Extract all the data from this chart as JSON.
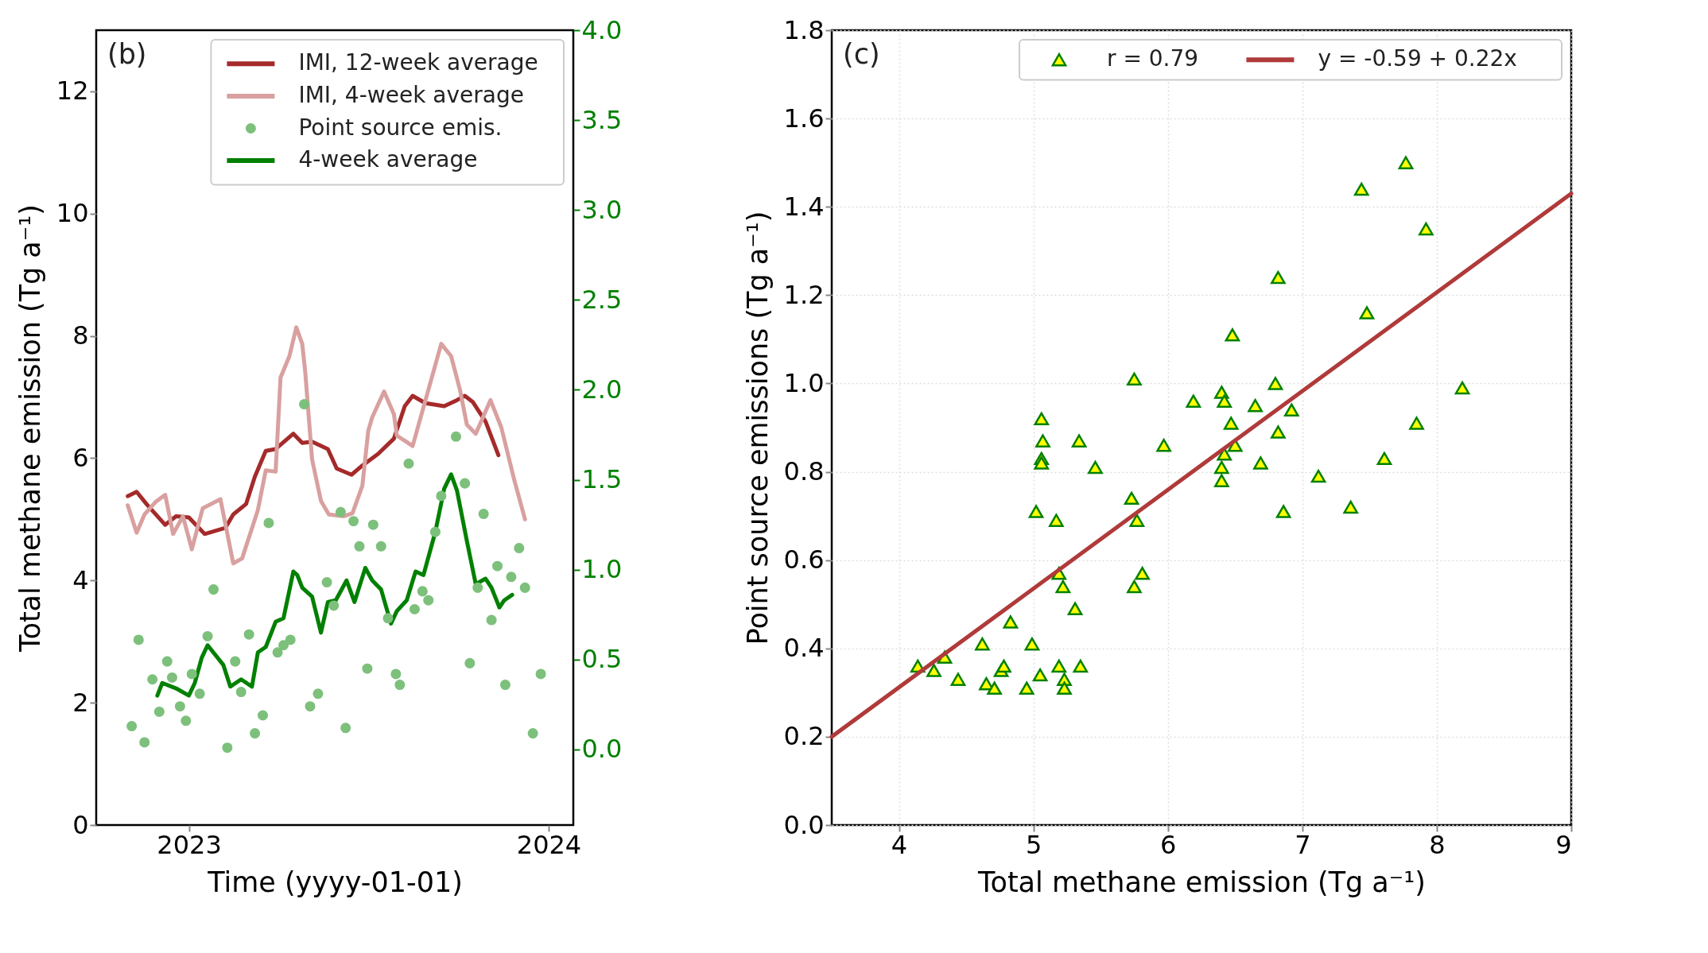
{
  "chart_data": [
    {
      "type": "line",
      "xlabel": "Time (yyyy-01-01)",
      "ylabel": "Total methane emission (Tg a⁻¹)",
      "xlim": [
        "2022-09-29",
        "2024-01-26"
      ],
      "xticks": [
        {
          "value": "2023-01-01",
          "label": "2023"
        },
        {
          "value": "2024-01-01",
          "label": "2024"
        }
      ],
      "ylim": [
        0,
        13
      ],
      "yticks": [
        0,
        2,
        4,
        6,
        8,
        10,
        12
      ],
      "y2lim": [
        -0.42,
        4.0
      ],
      "y2ticks": [
        {
          "value": 0,
          "label": "0.0"
        },
        {
          "value": 0.5,
          "label": "0.5"
        },
        {
          "value": 1,
          "label": "1.0"
        },
        {
          "value": 1.5,
          "label": "1.5"
        },
        {
          "value": 2,
          "label": "2.0"
        },
        {
          "value": 2.5,
          "label": "2.5"
        },
        {
          "value": 3,
          "label": "3.0"
        },
        {
          "value": 3.5,
          "label": "3.5"
        },
        {
          "value": 4,
          "label": "4.0"
        }
      ],
      "grid": false,
      "legend": "top right",
      "annotations": [
        "(b)"
      ],
      "series": [
        {
          "name": "IMI, 12-week average",
          "type": "line",
          "color": "#a52a2a",
          "marker": "none",
          "x": [
            "2022-10-31",
            "2022-11-09",
            "2022-11-19",
            "2022-12-08",
            "2022-12-19",
            "2023-01-01",
            "2023-01-17",
            "2023-02-07",
            "2023-02-15",
            "2023-02-28",
            "2023-03-09",
            "2023-03-20",
            "2023-03-30",
            "2023-04-17",
            "2023-04-26",
            "2023-05-06",
            "2023-05-22",
            "2023-05-31",
            "2023-06-15",
            "2023-06-26",
            "2023-07-12",
            "2023-07-28",
            "2023-08-08",
            "2023-08-16",
            "2023-08-29",
            "2023-09-17",
            "2023-09-30",
            "2023-10-08",
            "2023-10-16",
            "2023-10-29",
            "2023-11-11"
          ],
          "values": [
            5.38,
            5.45,
            5.25,
            4.91,
            5.05,
            5.03,
            4.76,
            4.86,
            5.08,
            5.25,
            5.7,
            6.12,
            6.15,
            6.4,
            6.25,
            6.27,
            6.15,
            5.83,
            5.73,
            5.88,
            6.07,
            6.32,
            6.85,
            7.02,
            6.9,
            6.85,
            6.95,
            7.02,
            6.92,
            6.6,
            6.05
          ]
        },
        {
          "name": "IMI, 4-week average",
          "type": "line",
          "color": "#d9a0a0",
          "marker": "none",
          "x": [
            "2022-10-31",
            "2022-11-09",
            "2022-11-17",
            "2022-11-28",
            "2022-12-08",
            "2022-12-16",
            "2022-12-26",
            "2023-01-04",
            "2023-01-15",
            "2023-02-02",
            "2023-02-15",
            "2023-02-24",
            "2023-03-12",
            "2023-03-20",
            "2023-03-30",
            "2023-04-04",
            "2023-04-13",
            "2023-04-20",
            "2023-04-26",
            "2023-04-29",
            "2023-05-06",
            "2023-05-15",
            "2023-05-23",
            "2023-06-07",
            "2023-06-16",
            "2023-06-26",
            "2023-07-02",
            "2023-07-06",
            "2023-07-18",
            "2023-07-28",
            "2023-07-31",
            "2023-08-16",
            "2023-09-01",
            "2023-09-14",
            "2023-09-24",
            "2023-10-03",
            "2023-10-10",
            "2023-10-19",
            "2023-11-03",
            "2023-11-14",
            "2023-11-27",
            "2023-12-08"
          ],
          "values": [
            5.23,
            4.78,
            5.08,
            5.28,
            5.4,
            4.76,
            5.05,
            4.51,
            5.18,
            5.33,
            4.28,
            4.36,
            5.15,
            5.8,
            5.78,
            7.32,
            7.67,
            8.14,
            7.87,
            7.42,
            5.98,
            5.3,
            5.08,
            5.05,
            5.1,
            5.55,
            6.45,
            6.67,
            7.09,
            6.72,
            6.37,
            6.2,
            7.12,
            7.87,
            7.67,
            7.12,
            6.55,
            6.4,
            6.95,
            6.5,
            5.65,
            5.0
          ]
        },
        {
          "name": "Point source emis.",
          "type": "scatter",
          "axis": "y2",
          "color": "#7cc07c",
          "marker": "circle",
          "x": [
            "2022-11-04",
            "2022-11-11",
            "2022-11-17",
            "2022-11-25",
            "2022-12-02",
            "2022-12-10",
            "2022-12-15",
            "2022-12-23",
            "2022-12-29",
            "2023-01-04",
            "2023-01-12",
            "2023-01-20",
            "2023-01-26",
            "2023-02-09",
            "2023-02-17",
            "2023-02-23",
            "2023-03-03",
            "2023-03-09",
            "2023-03-17",
            "2023-03-23",
            "2023-04-01",
            "2023-04-07",
            "2023-04-14",
            "2023-04-28",
            "2023-05-04",
            "2023-05-12",
            "2023-05-21",
            "2023-05-28",
            "2023-06-04",
            "2023-06-09",
            "2023-06-17",
            "2023-06-23",
            "2023-07-01",
            "2023-07-07",
            "2023-07-15",
            "2023-07-22",
            "2023-07-30",
            "2023-08-03",
            "2023-08-12",
            "2023-08-18",
            "2023-08-26",
            "2023-09-01",
            "2023-09-08",
            "2023-09-14",
            "2023-09-29",
            "2023-10-08",
            "2023-10-13",
            "2023-10-21",
            "2023-10-27",
            "2023-11-04",
            "2023-11-10",
            "2023-11-18",
            "2023-11-24",
            "2023-12-02",
            "2023-12-08",
            "2023-12-16",
            "2023-12-24"
          ],
          "values": [
            0.13,
            0.61,
            0.04,
            0.39,
            0.21,
            0.49,
            0.4,
            0.24,
            0.16,
            0.42,
            0.31,
            0.63,
            0.89,
            0.01,
            0.49,
            0.32,
            0.64,
            0.09,
            0.19,
            1.26,
            0.54,
            0.58,
            0.61,
            1.92,
            0.24,
            0.31,
            0.93,
            0.8,
            1.32,
            0.12,
            1.27,
            1.13,
            0.45,
            1.25,
            1.13,
            0.73,
            0.42,
            0.36,
            1.59,
            0.78,
            0.88,
            0.83,
            1.21,
            1.41,
            1.74,
            1.48,
            0.48,
            0.9,
            1.31,
            0.72,
            1.02,
            0.36,
            0.96,
            1.12,
            0.9,
            0.09,
            0.42
          ]
        },
        {
          "name": "4-week average",
          "type": "line",
          "axis": "y2",
          "color": "#008000",
          "marker": "none",
          "x": [
            "2022-11-30",
            "2022-12-05",
            "2022-12-19",
            "2023-01-01",
            "2023-01-07",
            "2023-01-14",
            "2023-01-20",
            "2023-02-05",
            "2023-02-12",
            "2023-02-23",
            "2023-03-06",
            "2023-03-12",
            "2023-03-20",
            "2023-03-30",
            "2023-04-07",
            "2023-04-17",
            "2023-04-21",
            "2023-04-26",
            "2023-05-06",
            "2023-05-15",
            "2023-05-22",
            "2023-05-30",
            "2023-06-10",
            "2023-06-18",
            "2023-06-29",
            "2023-07-06",
            "2023-07-15",
            "2023-07-25",
            "2023-07-31",
            "2023-08-10",
            "2023-08-19",
            "2023-08-27",
            "2023-09-08",
            "2023-09-17",
            "2023-09-24",
            "2023-09-30",
            "2023-10-10",
            "2023-10-19",
            "2023-10-29",
            "2023-11-04",
            "2023-11-12",
            "2023-11-17",
            "2023-11-25"
          ],
          "values": [
            0.3,
            0.37,
            0.34,
            0.3,
            0.37,
            0.51,
            0.58,
            0.47,
            0.35,
            0.39,
            0.35,
            0.54,
            0.57,
            0.71,
            0.73,
            0.99,
            0.97,
            0.9,
            0.85,
            0.65,
            0.82,
            0.83,
            0.94,
            0.82,
            1.01,
            0.94,
            0.89,
            0.7,
            0.77,
            0.83,
            0.99,
            0.97,
            1.21,
            1.45,
            1.53,
            1.44,
            1.16,
            0.92,
            0.95,
            0.9,
            0.79,
            0.83,
            0.86
          ]
        }
      ]
    },
    {
      "type": "scatter",
      "xlabel": "Total methane emission (Tg a⁻¹)",
      "ylabel": "Point source emissions (Tg a⁻¹)",
      "xlim": [
        3.5,
        9
      ],
      "xticks": [
        4,
        5,
        6,
        7,
        8,
        9
      ],
      "ylim": [
        0,
        1.8
      ],
      "yticks": [
        {
          "value": 0,
          "label": "0.0"
        },
        {
          "value": 0.2,
          "label": "0.2"
        },
        {
          "value": 0.4,
          "label": "0.4"
        },
        {
          "value": 0.6,
          "label": "0.6"
        },
        {
          "value": 0.8,
          "label": "0.8"
        },
        {
          "value": 1,
          "label": "1.0"
        },
        {
          "value": 1.2,
          "label": "1.2"
        },
        {
          "value": 1.4,
          "label": "1.4"
        },
        {
          "value": 1.6,
          "label": "1.6"
        },
        {
          "value": 1.8,
          "label": "1.8"
        }
      ],
      "grid": true,
      "legend": "top right",
      "annotations": [
        "(c)"
      ],
      "series": [
        {
          "name": "r = 0.79",
          "type": "scatter",
          "color": "#ffff00",
          "marker": "triangle",
          "x": [
            4.14,
            4.26,
            4.34,
            4.44,
            4.62,
            4.65,
            4.71,
            4.76,
            4.78,
            4.83,
            4.95,
            4.99,
            5.02,
            5.05,
            5.06,
            5.07,
            5.06,
            5.06,
            5.17,
            5.19,
            5.19,
            5.22,
            5.23,
            5.23,
            5.31,
            5.34,
            5.35,
            5.46,
            5.75,
            5.73,
            5.77,
            5.75,
            5.81,
            5.97,
            6.19,
            6.4,
            6.4,
            6.42,
            6.4,
            6.42,
            6.47,
            6.5,
            6.48,
            6.65,
            6.69,
            6.8,
            6.82,
            6.82,
            6.86,
            6.92,
            7.12,
            7.36,
            7.44,
            7.48,
            7.61,
            7.77,
            7.85,
            7.92,
            8.19
          ],
          "values": [
            0.36,
            0.35,
            0.38,
            0.33,
            0.41,
            0.32,
            0.31,
            0.35,
            0.36,
            0.46,
            0.31,
            0.41,
            0.71,
            0.34,
            0.92,
            0.87,
            0.83,
            0.82,
            0.69,
            0.36,
            0.57,
            0.54,
            0.33,
            0.31,
            0.49,
            0.87,
            0.36,
            0.81,
            1.01,
            0.74,
            0.69,
            0.54,
            0.57,
            0.86,
            0.96,
            0.78,
            0.81,
            0.84,
            0.98,
            0.96,
            0.91,
            0.86,
            1.11,
            0.95,
            0.82,
            1.0,
            0.89,
            1.24,
            0.71,
            0.94,
            0.79,
            0.72,
            1.44,
            1.16,
            0.83,
            1.5,
            0.91,
            1.35,
            0.99
          ]
        },
        {
          "name": "y = -0.59 + 0.22x",
          "type": "line",
          "color": "#b03a3a",
          "marker": "none",
          "x": [
            3.5,
            9
          ],
          "values": [
            0.2,
            1.43
          ]
        }
      ]
    }
  ]
}
